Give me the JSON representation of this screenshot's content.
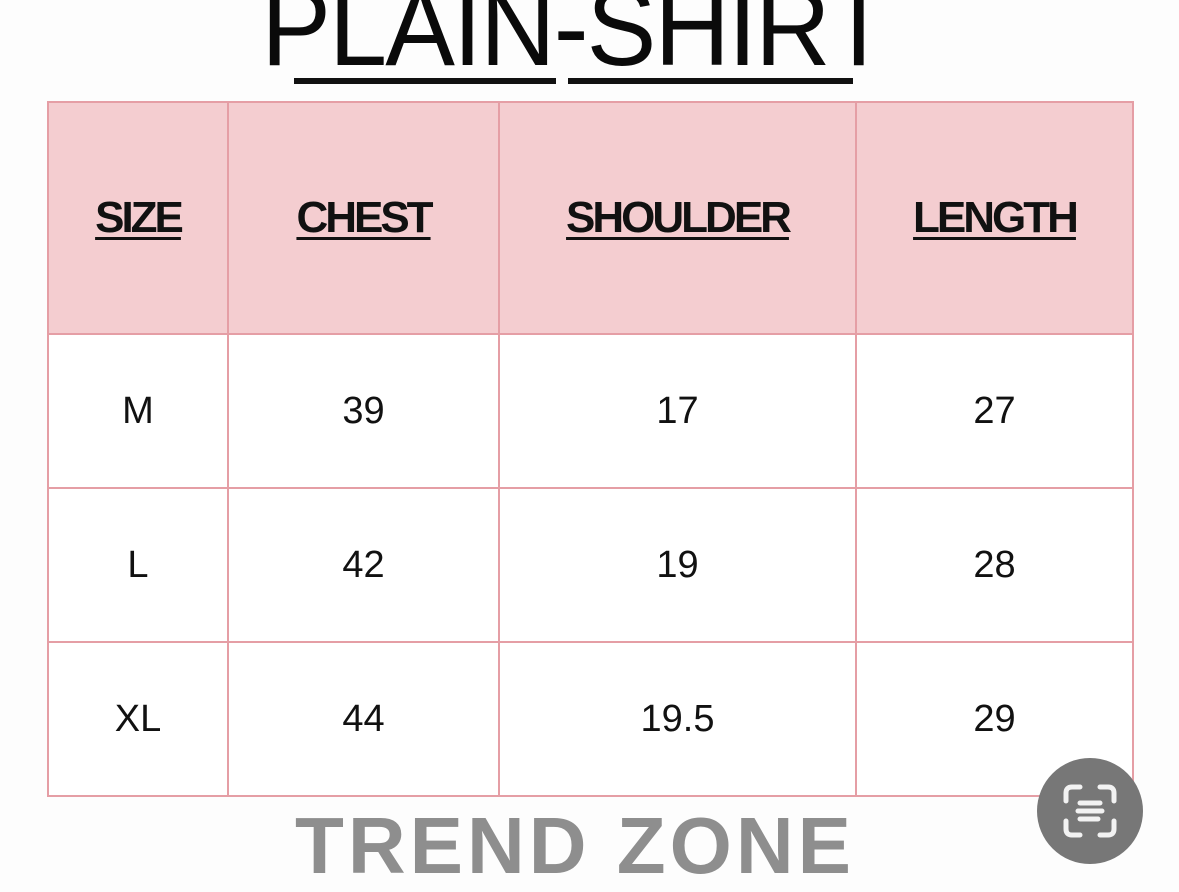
{
  "title": "PLAIN-SHIRT",
  "table": {
    "headers": [
      "SIZE",
      "CHEST",
      "SHOULDER",
      "LENGTH"
    ],
    "rows": [
      [
        "M",
        "39",
        "17",
        "27"
      ],
      [
        "L",
        "42",
        "19",
        "28"
      ],
      [
        "XL",
        "44",
        "19.5",
        "29"
      ]
    ]
  },
  "brand": "TREND ZONE",
  "colors": {
    "header_bg": "#f4cdd0",
    "border": "#e59ea5",
    "brand": "#8e8e8e"
  },
  "scan_button": {
    "icon": "scan-text-icon"
  }
}
